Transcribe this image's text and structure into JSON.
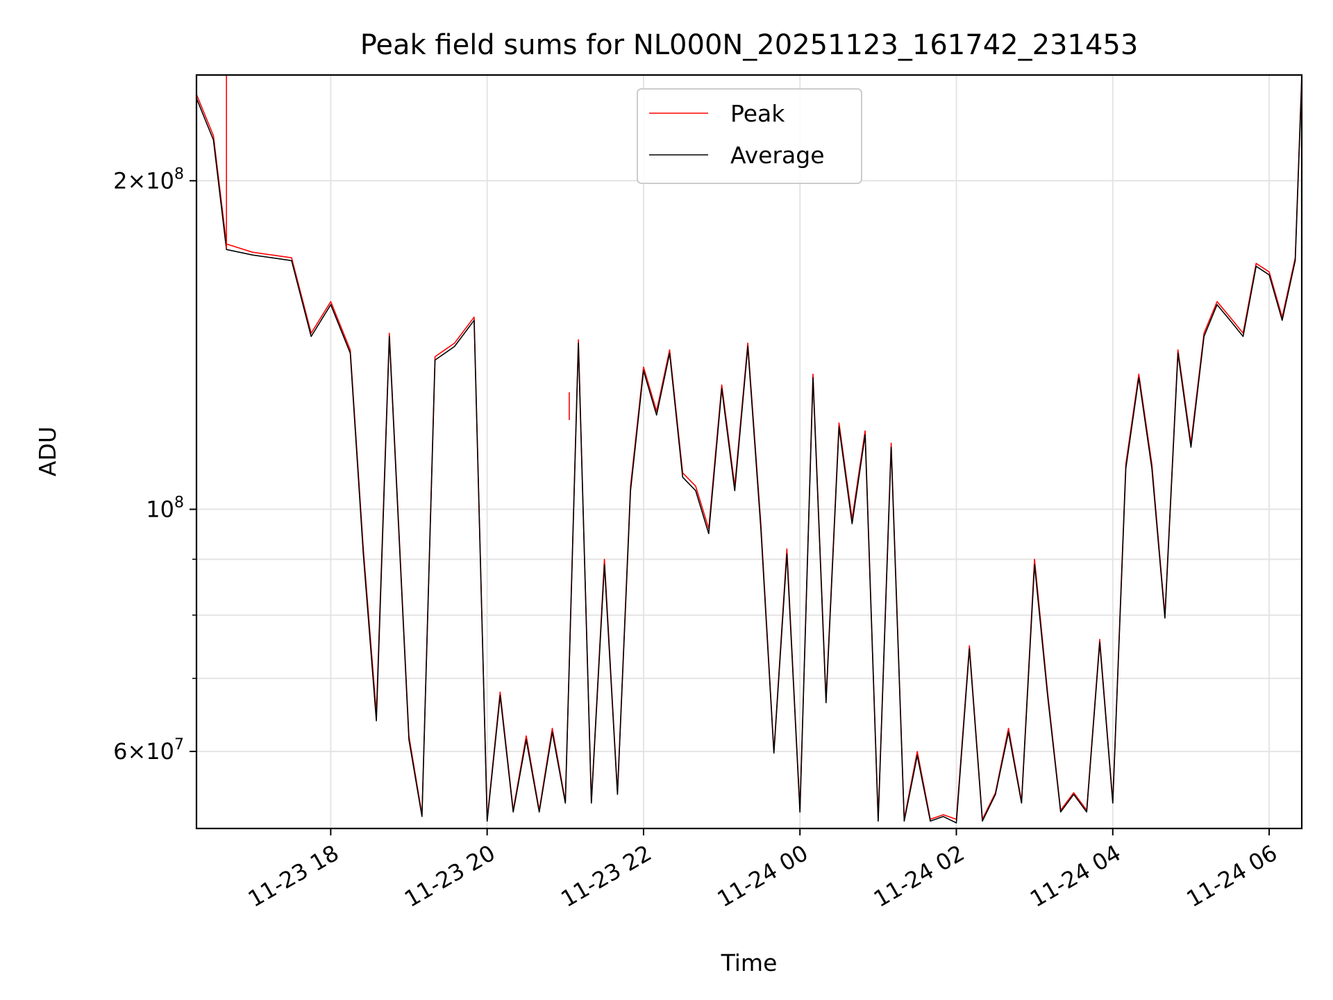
{
  "chart_data": {
    "type": "line",
    "title": "Peak field sums for NL000N_20251123_161742_231453",
    "xlabel": "Time",
    "ylabel": "ADU",
    "y_scale": "log",
    "ylim": [
      51000000,
      250000000
    ],
    "x_range": [
      "2025-11-23 16:17",
      "2025-11-24 06:25"
    ],
    "grid": true,
    "legend_position": "top-center",
    "x_ticks": [
      {
        "value": "2025-11-23 18:00",
        "label": "11-23 18"
      },
      {
        "value": "2025-11-23 20:00",
        "label": "11-23 20"
      },
      {
        "value": "2025-11-23 22:00",
        "label": "11-23 22"
      },
      {
        "value": "2025-11-24 00:00",
        "label": "11-24 00"
      },
      {
        "value": "2025-11-24 02:00",
        "label": "11-24 02"
      },
      {
        "value": "2025-11-24 04:00",
        "label": "11-24 04"
      },
      {
        "value": "2025-11-24 06:00",
        "label": "11-24 06"
      }
    ],
    "y_ticks": [
      {
        "value": 200000000,
        "label_base": "2×10",
        "label_exp": "8"
      },
      {
        "value": 100000000,
        "label_base": "10",
        "label_exp": "8"
      },
      {
        "value": 60000000,
        "label_base": "6×10",
        "label_exp": "7"
      }
    ],
    "y_minor_gridlines": [
      90000000,
      80000000,
      70000000
    ],
    "x": [
      "2025-11-23 16:17",
      "2025-11-23 16:30",
      "2025-11-23 16:40",
      "2025-11-23 17:00",
      "2025-11-23 17:15",
      "2025-11-23 17:30",
      "2025-11-23 17:45",
      "2025-11-23 18:00",
      "2025-11-23 18:15",
      "2025-11-23 18:25",
      "2025-11-23 18:35",
      "2025-11-23 18:45",
      "2025-11-23 19:00",
      "2025-11-23 19:10",
      "2025-11-23 19:20",
      "2025-11-23 19:35",
      "2025-11-23 19:50",
      "2025-11-23 20:00",
      "2025-11-23 20:10",
      "2025-11-23 20:20",
      "2025-11-23 20:30",
      "2025-11-23 20:40",
      "2025-11-23 20:50",
      "2025-11-23 21:00",
      "2025-11-23 21:10",
      "2025-11-23 21:20",
      "2025-11-23 21:30",
      "2025-11-23 21:40",
      "2025-11-23 21:50",
      "2025-11-23 22:00",
      "2025-11-23 22:10",
      "2025-11-23 22:20",
      "2025-11-23 22:30",
      "2025-11-23 22:40",
      "2025-11-23 22:50",
      "2025-11-23 23:00",
      "2025-11-23 23:10",
      "2025-11-23 23:20",
      "2025-11-23 23:30",
      "2025-11-23 23:40",
      "2025-11-23 23:50",
      "2025-11-24 00:00",
      "2025-11-24 00:10",
      "2025-11-24 00:20",
      "2025-11-24 00:30",
      "2025-11-24 00:40",
      "2025-11-24 00:50",
      "2025-11-24 01:00",
      "2025-11-24 01:10",
      "2025-11-24 01:20",
      "2025-11-24 01:30",
      "2025-11-24 01:40",
      "2025-11-24 01:50",
      "2025-11-24 02:00",
      "2025-11-24 02:10",
      "2025-11-24 02:20",
      "2025-11-24 02:30",
      "2025-11-24 02:40",
      "2025-11-24 02:50",
      "2025-11-24 03:00",
      "2025-11-24 03:10",
      "2025-11-24 03:20",
      "2025-11-24 03:30",
      "2025-11-24 03:40",
      "2025-11-24 03:50",
      "2025-11-24 04:00",
      "2025-11-24 04:10",
      "2025-11-24 04:20",
      "2025-11-24 04:30",
      "2025-11-24 04:40",
      "2025-11-24 04:50",
      "2025-11-24 05:00",
      "2025-11-24 05:10",
      "2025-11-24 05:20",
      "2025-11-24 05:30",
      "2025-11-24 05:40",
      "2025-11-24 05:50",
      "2025-11-24 06:00",
      "2025-11-24 06:10",
      "2025-11-24 06:20",
      "2025-11-24 06:25"
    ],
    "series": [
      {
        "name": "Peak",
        "color": "#ff0000",
        "values": [
          240000000,
          220000000,
          175000000,
          172000000,
          171000000,
          170000000,
          145000000,
          155000000,
          140000000,
          92000000,
          65000000,
          145000000,
          62000000,
          52500000,
          138000000,
          142000000,
          150000000,
          52000000,
          68000000,
          53000000,
          62000000,
          53000000,
          63000000,
          54000000,
          143000000,
          54000000,
          90000000,
          55000000,
          105000000,
          135000000,
          123000000,
          140000000,
          108000000,
          105000000,
          96000000,
          130000000,
          105000000,
          142000000,
          97000000,
          60000000,
          92000000,
          53000000,
          133000000,
          67000000,
          120000000,
          98000000,
          118000000,
          52000000,
          115000000,
          52000000,
          60000000,
          52000000,
          52500000,
          52000000,
          75000000,
          52000000,
          55000000,
          63000000,
          54000000,
          90000000,
          68000000,
          53000000,
          55000000,
          53000000,
          76000000,
          54000000,
          110000000,
          133000000,
          110000000,
          80000000,
          140000000,
          115000000,
          145000000,
          155000000,
          150000000,
          145000000,
          168000000,
          165000000,
          150000000,
          170000000,
          250000000
        ]
      },
      {
        "name": "Average",
        "color": "#000000",
        "values": [
          238000000,
          218000000,
          173000000,
          171000000,
          170000000,
          169000000,
          144000000,
          154000000,
          139000000,
          91000000,
          64000000,
          144000000,
          61500000,
          52300000,
          137000000,
          141000000,
          149000000,
          51800000,
          67500000,
          52800000,
          61500000,
          52800000,
          62500000,
          53800000,
          142000000,
          53800000,
          89000000,
          54800000,
          104000000,
          134000000,
          122000000,
          139000000,
          107000000,
          104000000,
          95000000,
          129000000,
          104000000,
          141000000,
          96000000,
          59800000,
          91000000,
          52800000,
          132000000,
          66500000,
          119000000,
          97000000,
          117000000,
          51800000,
          114000000,
          51800000,
          59500000,
          51800000,
          52300000,
          51600000,
          74500000,
          51800000,
          54800000,
          62500000,
          53800000,
          89000000,
          67500000,
          52800000,
          54800000,
          52800000,
          75500000,
          53800000,
          109000000,
          132000000,
          109000000,
          79500000,
          139000000,
          114000000,
          144000000,
          154000000,
          149000000,
          144000000,
          167000000,
          164000000,
          149000000,
          169000000,
          248000000
        ]
      }
    ],
    "annotations": [
      {
        "series": "Peak",
        "kind": "spike",
        "x": "2025-11-23 16:40",
        "value": 250000000
      },
      {
        "series": "Peak",
        "kind": "spike",
        "x": "2025-11-23 21:03",
        "value": 128000000
      }
    ]
  }
}
